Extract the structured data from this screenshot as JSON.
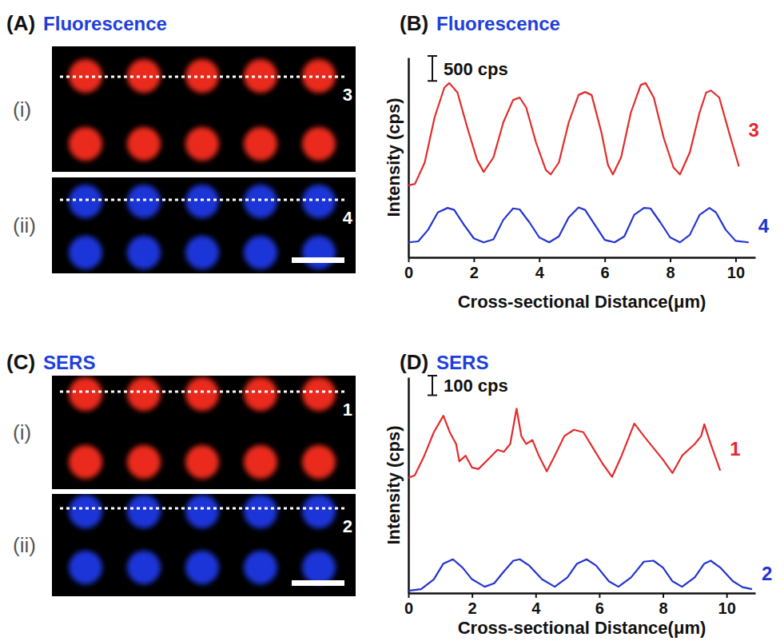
{
  "images": [
    {
      "letter": "(A)",
      "title": "Fluorescence",
      "panels": [
        {
          "label": "(i)",
          "profile": "3",
          "color": "#ea2a1e"
        },
        {
          "label": "(ii)",
          "profile": "4",
          "color": "#1c34d8"
        }
      ]
    },
    {
      "letter": "(C)",
      "title": "SERS",
      "panels": [
        {
          "label": "(i)",
          "profile": "1",
          "color": "#ea2a1e"
        },
        {
          "label": "(ii)",
          "profile": "2",
          "color": "#1c34d8"
        }
      ]
    }
  ],
  "chart_data": [
    {
      "type": "line",
      "letter": "(B)",
      "title": "Fluorescence",
      "x_label": "Cross-sectional Distance(μm)",
      "y_label": "Intensity (cps)",
      "scale_bar": {
        "value": 500,
        "label": "500 cps"
      },
      "xlim": [
        0,
        10.6
      ],
      "xticks": [
        0,
        2,
        4,
        6,
        8,
        10
      ],
      "ylim": [
        0,
        4000
      ],
      "tick_labels": "x",
      "series": [
        {
          "name": "3",
          "color": "#e32b2b",
          "x": [
            0,
            0.2,
            0.5,
            0.8,
            1.1,
            1.25,
            1.5,
            1.8,
            2.1,
            2.3,
            2.6,
            2.9,
            3.2,
            3.4,
            3.6,
            3.9,
            4.2,
            4.35,
            4.6,
            4.9,
            5.2,
            5.4,
            5.6,
            5.9,
            6.1,
            6.25,
            6.5,
            6.8,
            7.1,
            7.25,
            7.5,
            7.8,
            8.1,
            8.3,
            8.6,
            8.9,
            9.1,
            9.25,
            9.5,
            9.8,
            10.1
          ],
          "values": [
            1440,
            1470,
            1900,
            2800,
            3400,
            3490,
            3300,
            2600,
            1950,
            1710,
            2000,
            2700,
            3150,
            3200,
            3000,
            2300,
            1750,
            1660,
            1900,
            2700,
            3250,
            3310,
            3250,
            2500,
            1850,
            1660,
            2000,
            2900,
            3450,
            3490,
            3200,
            2400,
            1800,
            1660,
            2100,
            2900,
            3300,
            3340,
            3200,
            2500,
            1820
          ]
        },
        {
          "name": "4",
          "color": "#2233d0",
          "x": [
            0,
            0.3,
            0.6,
            0.9,
            1.2,
            1.4,
            1.7,
            2.0,
            2.3,
            2.6,
            2.9,
            3.2,
            3.4,
            3.7,
            4.0,
            4.3,
            4.6,
            4.9,
            5.2,
            5.4,
            5.7,
            6.0,
            6.3,
            6.6,
            6.9,
            7.2,
            7.4,
            7.7,
            8.0,
            8.3,
            8.6,
            8.9,
            9.2,
            9.4,
            9.7,
            10.0,
            10.4
          ],
          "values": [
            300,
            320,
            550,
            900,
            990,
            950,
            650,
            380,
            300,
            360,
            750,
            980,
            960,
            700,
            400,
            300,
            420,
            800,
            1000,
            950,
            650,
            350,
            300,
            420,
            850,
            990,
            980,
            700,
            400,
            300,
            450,
            850,
            990,
            900,
            550,
            330,
            300
          ]
        }
      ]
    },
    {
      "type": "line",
      "letter": "(D)",
      "title": "SERS",
      "x_label": "Cross-sectional Distance(μm)",
      "y_label": "Intensity (cps)",
      "scale_bar": {
        "value": 100,
        "label": "100 cps"
      },
      "xlim": [
        0,
        10.9
      ],
      "xticks": [
        0,
        2,
        4,
        6,
        8,
        10
      ],
      "ylim": [
        0,
        1100
      ],
      "tick_labels": "x",
      "series": [
        {
          "name": "1",
          "color": "#e32b2b",
          "x": [
            0,
            0.2,
            0.5,
            0.8,
            1.1,
            1.3,
            1.5,
            1.6,
            1.8,
            2.0,
            2.2,
            2.5,
            2.8,
            3.0,
            3.2,
            3.4,
            3.55,
            3.7,
            3.9,
            4.1,
            4.35,
            4.6,
            4.9,
            5.2,
            5.5,
            5.8,
            6.1,
            6.4,
            6.7,
            7.1,
            7.4,
            7.7,
            8.0,
            8.3,
            8.6,
            9.0,
            9.2,
            9.3,
            9.5,
            9.8
          ],
          "values": [
            588,
            600,
            700,
            820,
            904,
            820,
            760,
            672,
            700,
            640,
            632,
            680,
            730,
            720,
            760,
            940,
            800,
            760,
            780,
            700,
            620,
            700,
            800,
            832,
            820,
            740,
            660,
            592,
            700,
            864,
            800,
            740,
            680,
            612,
            700,
            760,
            800,
            860,
            760,
            624
          ]
        },
        {
          "name": "2",
          "color": "#2233d0",
          "x": [
            0,
            0.4,
            0.8,
            1.1,
            1.4,
            1.7,
            2.0,
            2.4,
            2.7,
            3.0,
            3.3,
            3.5,
            3.8,
            4.2,
            4.6,
            5.0,
            5.3,
            5.6,
            5.9,
            6.3,
            6.6,
            7.0,
            7.4,
            7.7,
            8.0,
            8.3,
            8.6,
            9.0,
            9.3,
            9.5,
            9.8,
            10.2,
            10.5,
            10.8
          ],
          "values": [
            12,
            20,
            70,
            150,
            172,
            130,
            70,
            32,
            50,
            110,
            165,
            172,
            140,
            70,
            32,
            80,
            150,
            172,
            140,
            60,
            32,
            80,
            160,
            165,
            130,
            60,
            32,
            80,
            150,
            165,
            130,
            60,
            30,
            20
          ]
        }
      ]
    }
  ]
}
